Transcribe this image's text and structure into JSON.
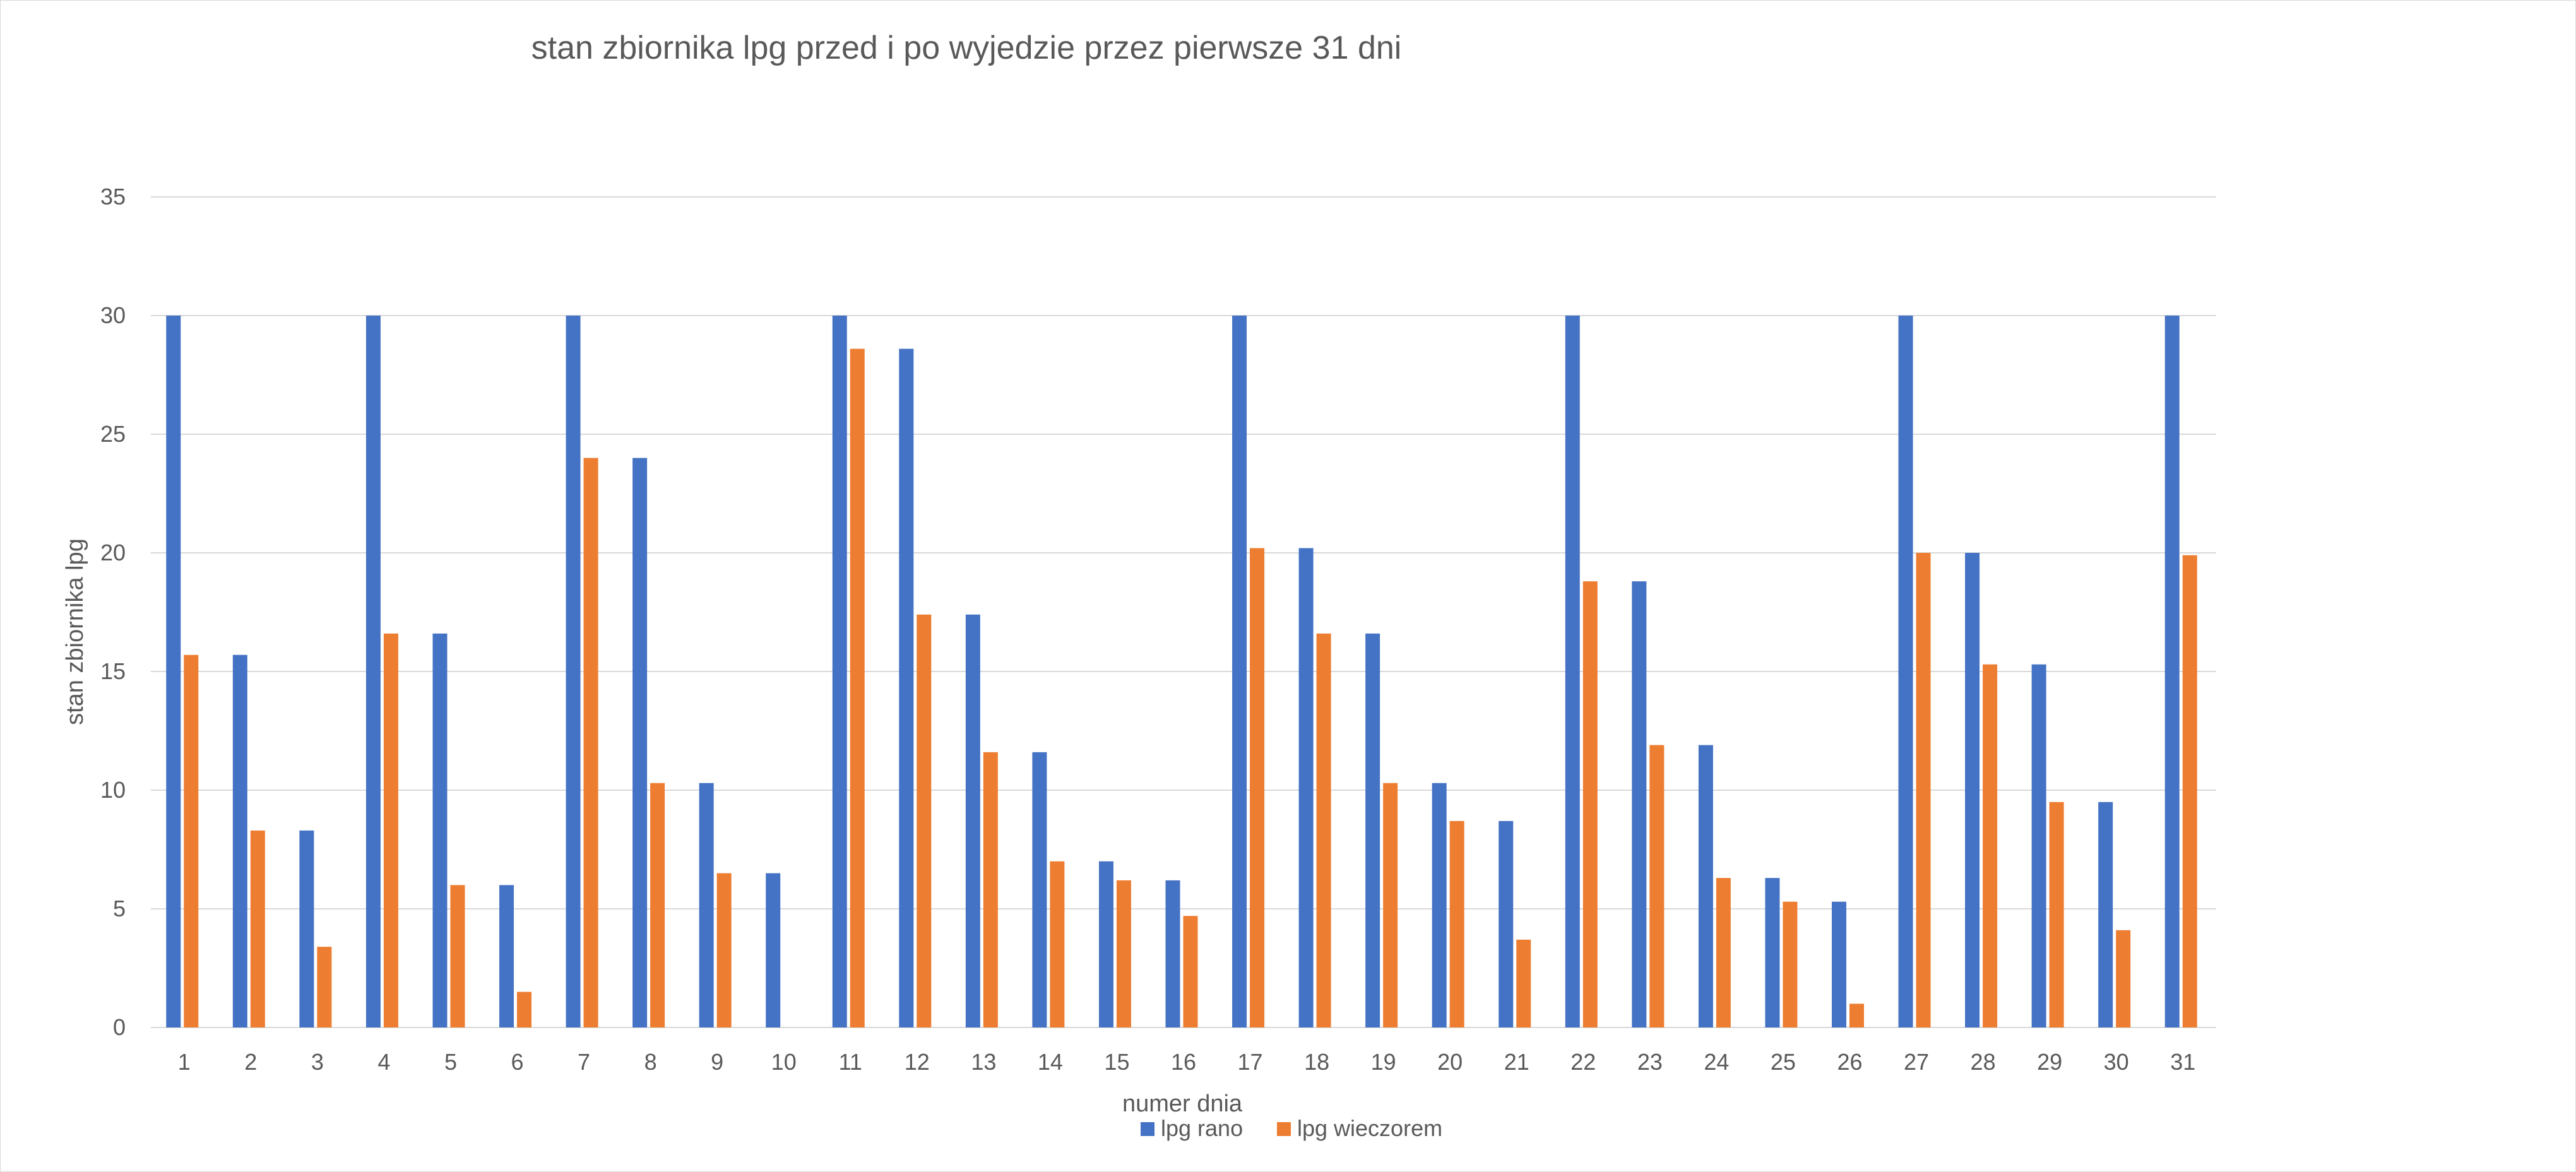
{
  "chart_data": {
    "type": "bar",
    "title": "stan zbiornika lpg przed i po wyjedzie przez pierwsze 31 dni",
    "xlabel": "numer dnia",
    "ylabel": "stan zbiornika lpg",
    "ylim": [
      0,
      35
    ],
    "yticks": [
      0,
      5,
      10,
      15,
      20,
      25,
      30,
      35
    ],
    "grid": true,
    "legend_position": "bottom",
    "categories": [
      "1",
      "2",
      "3",
      "4",
      "5",
      "6",
      "7",
      "8",
      "9",
      "10",
      "11",
      "12",
      "13",
      "14",
      "15",
      "16",
      "17",
      "18",
      "19",
      "20",
      "21",
      "22",
      "23",
      "24",
      "25",
      "26",
      "27",
      "28",
      "29",
      "30",
      "31"
    ],
    "series": [
      {
        "name": "lpg rano",
        "color": "#4472c4",
        "values": [
          30,
          15.7,
          8.3,
          30,
          16.6,
          6.0,
          30,
          24.0,
          10.3,
          6.5,
          30,
          28.6,
          17.4,
          11.6,
          7.0,
          6.2,
          30,
          20.2,
          16.6,
          10.3,
          8.7,
          30,
          18.8,
          11.9,
          6.3,
          5.3,
          30,
          20.0,
          15.3,
          9.5,
          30
        ]
      },
      {
        "name": "lpg wieczorem",
        "color": "#ed7d31",
        "values": [
          15.7,
          8.3,
          3.4,
          16.6,
          6.0,
          1.5,
          24.0,
          10.3,
          6.5,
          0,
          28.6,
          17.4,
          11.6,
          7.0,
          6.2,
          4.7,
          20.2,
          16.6,
          10.3,
          8.7,
          3.7,
          18.8,
          11.9,
          6.3,
          5.3,
          1.0,
          20.0,
          15.3,
          9.5,
          4.1,
          19.9
        ]
      }
    ]
  }
}
